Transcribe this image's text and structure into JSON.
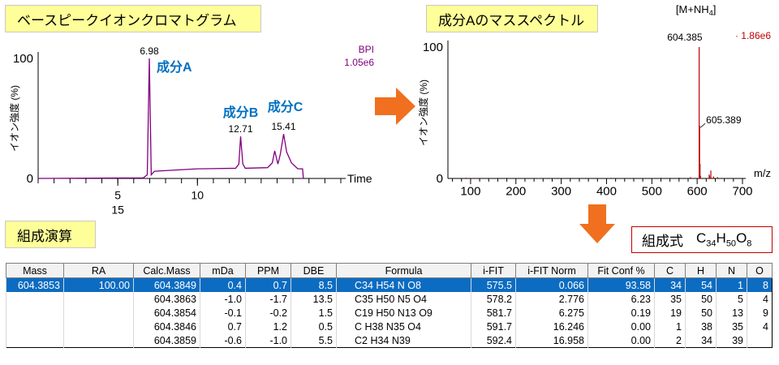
{
  "titles": {
    "bpc": "ベースピークイオンクロマトグラム",
    "ms": "成分Aのマススペクトル",
    "calc": "組成演算",
    "formula_label": "組成式",
    "formula": {
      "c": "C",
      "c_n": "34",
      "h": "H",
      "h_n": "50",
      "o": "O",
      "o_n": "8"
    }
  },
  "chart_data": [
    {
      "type": "line",
      "ylabel": "イオン強度 (%)",
      "xlabel": "Time",
      "ylim": [
        0,
        100
      ],
      "xlim": [
        0,
        19
      ],
      "y_ticks": [
        "0",
        "100"
      ],
      "x_ticks": [
        {
          "x": 5,
          "label": "5"
        },
        {
          "x": 10,
          "label": "10"
        }
      ],
      "x_ticks_second_row": [
        {
          "x": 5,
          "label": "15"
        }
      ],
      "trace_label": "BPI",
      "trace_scale": "1.05e6",
      "color": "#800080",
      "peaks": [
        {
          "x": 6.98,
          "y": 100,
          "label": "6.98"
        },
        {
          "x": 12.71,
          "y": 35,
          "label": "12.71"
        },
        {
          "x": 15.41,
          "y": 37,
          "label": "15.41"
        }
      ],
      "components": [
        {
          "name": "成分A",
          "x": 6.98
        },
        {
          "name": "成分B",
          "x": 12.71
        },
        {
          "name": "成分C",
          "x": 15.41
        }
      ],
      "series": [
        {
          "x": [
            0,
            6.6,
            6.85,
            6.98,
            7.1,
            7.3,
            10,
            12.4,
            12.6,
            12.71,
            12.85,
            13.0,
            14.4,
            14.7,
            14.85,
            15.05,
            15.2,
            15.41,
            15.6,
            15.9,
            16.3,
            16.6,
            16.65
          ],
          "y": [
            0,
            0.5,
            3,
            100,
            3,
            6,
            8,
            8.5,
            12,
            35,
            12,
            8.5,
            9,
            13,
            23,
            12,
            20,
            37,
            22,
            13,
            8,
            8,
            0
          ]
        }
      ]
    },
    {
      "type": "bar",
      "ylabel": "イオン強度 (%)",
      "xlabel": "m/z",
      "ylim": [
        0,
        100
      ],
      "xlim": [
        50,
        700
      ],
      "y_ticks": [
        "0",
        "100"
      ],
      "x_ticks": [
        100,
        200,
        300,
        400,
        500,
        600,
        700
      ],
      "adduct_label": "[M+NH4]",
      "trace_scale": "1.86e6",
      "color": "#c00000",
      "peaks": [
        {
          "x": 604.385,
          "y": 100,
          "label": "604.385"
        },
        {
          "x": 605.389,
          "y": 40,
          "label": "605.389"
        }
      ],
      "sticks": [
        [
          604.385,
          100
        ],
        [
          605.389,
          40
        ],
        [
          606.39,
          11
        ],
        [
          607.4,
          2
        ],
        [
          626.5,
          3
        ],
        [
          627.5,
          2
        ],
        [
          630.2,
          6
        ],
        [
          636,
          1.5
        ],
        [
          645,
          1
        ],
        [
          585,
          1
        ],
        [
          560,
          0.6
        ],
        [
          520,
          0.5
        ],
        [
          480,
          0.4
        ],
        [
          410,
          0.5
        ],
        [
          330,
          0.4
        ],
        [
          250,
          0.3
        ],
        [
          180,
          0.5
        ],
        [
          120,
          0.4
        ],
        [
          90,
          0.6
        ]
      ]
    }
  ],
  "table": {
    "headers": [
      "Mass",
      "RA",
      "Calc.Mass",
      "mDa",
      "PPM",
      "DBE",
      "Formula",
      "i-FIT",
      "i-FIT Norm",
      "Fit Conf %",
      "C",
      "H",
      "N",
      "O"
    ],
    "rows": [
      [
        "604.3853",
        "100.00",
        "604.3849",
        "0.4",
        "0.7",
        "8.5",
        "C34 H54 N O8",
        "575.5",
        "0.066",
        "93.58",
        "34",
        "54",
        "1",
        "8"
      ],
      [
        "",
        "",
        "604.3863",
        "-1.0",
        "-1.7",
        "13.5",
        "C35 H50 N5 O4",
        "578.2",
        "2.776",
        "6.23",
        "35",
        "50",
        "5",
        "4"
      ],
      [
        "",
        "",
        "604.3854",
        "-0.1",
        "-0.2",
        "1.5",
        "C19 H50 N13 O9",
        "581.7",
        "6.275",
        "0.19",
        "19",
        "50",
        "13",
        "9"
      ],
      [
        "",
        "",
        "604.3846",
        "0.7",
        "1.2",
        "0.5",
        "C H38 N35 O4",
        "591.7",
        "16.246",
        "0.00",
        "1",
        "38",
        "35",
        "4"
      ],
      [
        "",
        "",
        "604.3859",
        "-0.6",
        "-1.0",
        "5.5",
        "C2 H34 N39",
        "592.4",
        "16.958",
        "0.00",
        "2",
        "34",
        "39",
        ""
      ]
    ]
  },
  "colors": {
    "arrow": "#f07020",
    "accent": "#0070c0",
    "selected_row": "#0c6cc1"
  }
}
